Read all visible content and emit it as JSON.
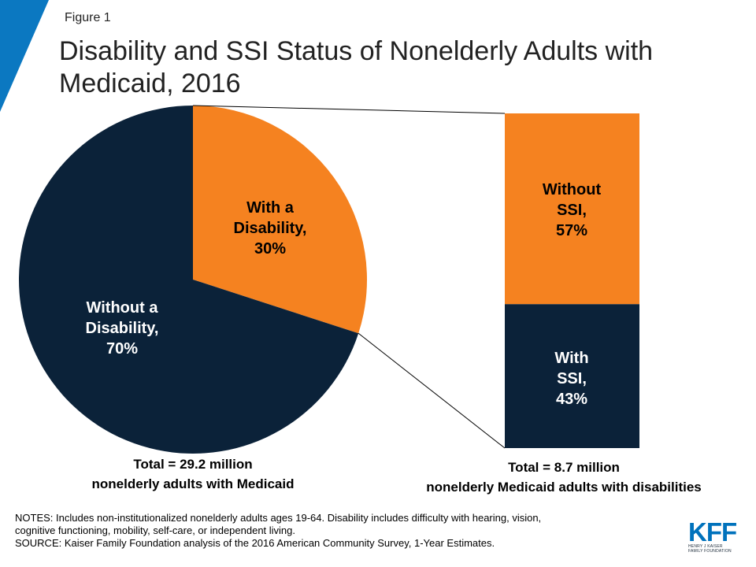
{
  "figure_label": "Figure 1",
  "title": "Disability and SSI Status of Nonelderly Adults with Medicaid, 2016",
  "colors": {
    "navy": "#0b2239",
    "orange": "#f58220",
    "accent_blue": "#0b78c1"
  },
  "chart_data": [
    {
      "type": "pie",
      "slices": [
        {
          "lines": [
            "With a",
            "Disability,",
            "30%"
          ],
          "value": 30,
          "color": "#f58220"
        },
        {
          "lines": [
            "Without a",
            "Disability,",
            "70%"
          ],
          "value": 70,
          "color": "#0b2239"
        }
      ],
      "total_lines": [
        "Total = 29.2 million",
        "nonelderly adults with Medicaid"
      ]
    },
    {
      "type": "bar",
      "stacked": true,
      "segments": [
        {
          "lines": [
            "Without",
            "SSI,",
            "57%"
          ],
          "value": 57,
          "color": "#f58220"
        },
        {
          "lines": [
            "With",
            "SSI,",
            "43%"
          ],
          "value": 43,
          "color": "#0b2239"
        }
      ],
      "total_lines": [
        "Total = 8.7 million",
        "nonelderly Medicaid adults with disabilities"
      ]
    }
  ],
  "notes": [
    "NOTES: Includes non-institutionalized  nonelderly adults ages 19-64. Disability includes difficulty with hearing, vision,",
    "cognitive functioning, mobility, self-care, or independent living.",
    "SOURCE: Kaiser Family Foundation analysis of the 2016 American Community Survey, 1-Year Estimates."
  ],
  "logo": {
    "mark": "KFF",
    "sub_lines": [
      "HENRY J KAISER",
      "FAMILY FOUNDATION"
    ]
  }
}
